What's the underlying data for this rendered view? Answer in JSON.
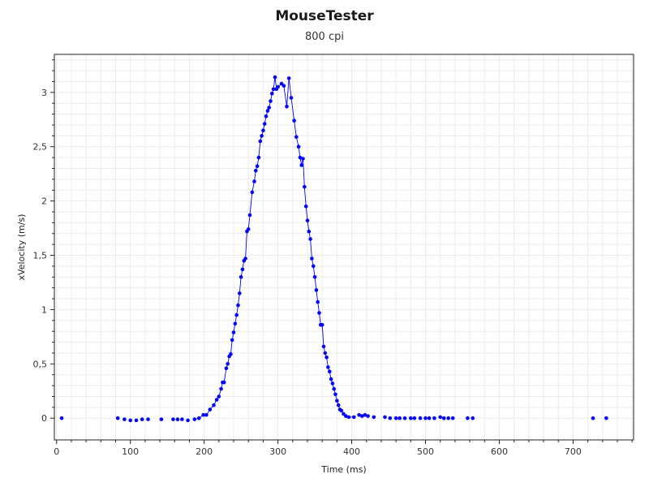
{
  "chart_data": {
    "type": "scatter",
    "title": "MouseTester",
    "subtitle": "800 cpi",
    "xlabel": "Time (ms)",
    "ylabel": "xVelocity (m/s)",
    "xlim": [
      -3,
      782
    ],
    "ylim": [
      -0.2,
      3.35
    ],
    "x_ticks": [
      0,
      100,
      200,
      300,
      400,
      500,
      600,
      700
    ],
    "y_ticks": [
      0,
      0.5,
      1,
      1.5,
      2,
      2.5,
      3
    ],
    "x_tick_labels": [
      "0",
      "100",
      "200",
      "300",
      "400",
      "500",
      "600",
      "700"
    ],
    "y_tick_labels": [
      "0",
      "0,5",
      "1",
      "1,5",
      "2",
      "2,5",
      "3"
    ],
    "grid": true,
    "colors": {
      "series": "#0000ff",
      "grid": "#ebebeb",
      "axis": "#222222"
    },
    "series": [
      {
        "points": [
          [
            7,
            0
          ],
          [
            83,
            0
          ],
          [
            92,
            -0.01
          ],
          [
            100,
            -0.02
          ],
          [
            108,
            -0.02
          ],
          [
            116,
            -0.01
          ],
          [
            124,
            -0.01
          ],
          [
            142,
            -0.01
          ],
          [
            158,
            -0.01
          ],
          [
            164,
            -0.01
          ],
          [
            170,
            -0.01
          ],
          [
            178,
            -0.02
          ],
          [
            187,
            -0.01
          ],
          [
            193,
            0
          ],
          [
            199,
            0.03
          ],
          [
            203,
            0.03
          ],
          [
            208,
            0.08
          ],
          [
            213,
            0.12
          ],
          [
            217,
            0.17
          ],
          [
            220,
            0.2
          ],
          [
            223,
            0.27
          ],
          [
            225,
            0.33
          ],
          [
            227,
            0.33
          ],
          [
            230,
            0.46
          ],
          [
            232,
            0.5
          ],
          [
            234,
            0.57
          ],
          [
            236,
            0.59
          ],
          [
            238,
            0.72
          ],
          [
            240,
            0.79
          ],
          [
            242,
            0.87
          ],
          [
            244,
            0.95
          ],
          [
            246,
            1.04
          ],
          [
            248,
            1.15
          ],
          [
            250,
            1.3
          ],
          [
            252,
            1.37
          ],
          [
            254,
            1.45
          ],
          [
            256,
            1.47
          ],
          [
            258,
            1.72
          ],
          [
            260,
            1.74
          ],
          [
            262,
            1.87
          ],
          [
            265,
            2.08
          ],
          [
            268,
            2.18
          ],
          [
            270,
            2.28
          ],
          [
            272,
            2.32
          ],
          [
            274,
            2.4
          ],
          [
            276,
            2.55
          ],
          [
            278,
            2.6
          ],
          [
            280,
            2.65
          ],
          [
            282,
            2.71
          ],
          [
            284,
            2.78
          ],
          [
            286,
            2.83
          ],
          [
            288,
            2.86
          ],
          [
            290,
            2.92
          ],
          [
            292,
            2.99
          ],
          [
            294,
            3.03
          ],
          [
            296,
            3.14
          ],
          [
            298,
            3.03
          ],
          [
            300,
            3.05
          ],
          [
            305,
            3.08
          ],
          [
            308,
            3.06
          ],
          [
            312,
            2.87
          ],
          [
            315,
            3.13
          ],
          [
            318,
            2.95
          ],
          [
            322,
            2.74
          ],
          [
            325,
            2.59
          ],
          [
            328,
            2.5
          ],
          [
            330,
            2.4
          ],
          [
            332,
            2.33
          ],
          [
            334,
            2.39
          ],
          [
            336,
            2.13
          ],
          [
            338,
            1.95
          ],
          [
            340,
            1.82
          ],
          [
            342,
            1.72
          ],
          [
            344,
            1.65
          ],
          [
            346,
            1.47
          ],
          [
            348,
            1.4
          ],
          [
            350,
            1.3
          ],
          [
            352,
            1.18
          ],
          [
            354,
            1.07
          ],
          [
            356,
            0.97
          ],
          [
            358,
            0.86
          ],
          [
            360,
            0.86
          ],
          [
            362,
            0.66
          ],
          [
            364,
            0.6
          ],
          [
            366,
            0.56
          ],
          [
            368,
            0.47
          ],
          [
            370,
            0.43
          ],
          [
            372,
            0.36
          ],
          [
            374,
            0.32
          ],
          [
            376,
            0.27
          ],
          [
            378,
            0.22
          ],
          [
            380,
            0.16
          ],
          [
            382,
            0.12
          ],
          [
            384,
            0.08
          ],
          [
            386,
            0.07
          ],
          [
            389,
            0.04
          ],
          [
            392,
            0.02
          ],
          [
            396,
            0.01
          ],
          [
            403,
            0.01
          ],
          [
            410,
            0.03
          ],
          [
            414,
            0.02
          ],
          [
            418,
            0.03
          ],
          [
            422,
            0.02
          ],
          [
            430,
            0.01
          ],
          [
            445,
            0.01
          ],
          [
            452,
            0
          ],
          [
            460,
            0
          ],
          [
            465,
            0
          ],
          [
            472,
            0
          ],
          [
            480,
            0
          ],
          [
            485,
            0
          ],
          [
            493,
            0
          ],
          [
            500,
            0
          ],
          [
            505,
            0
          ],
          [
            512,
            0
          ],
          [
            520,
            0.01
          ],
          [
            525,
            0
          ],
          [
            531,
            0
          ],
          [
            537,
            0
          ],
          [
            557,
            0
          ],
          [
            564,
            0
          ],
          [
            727,
            0
          ],
          [
            745,
            0
          ]
        ]
      }
    ]
  }
}
